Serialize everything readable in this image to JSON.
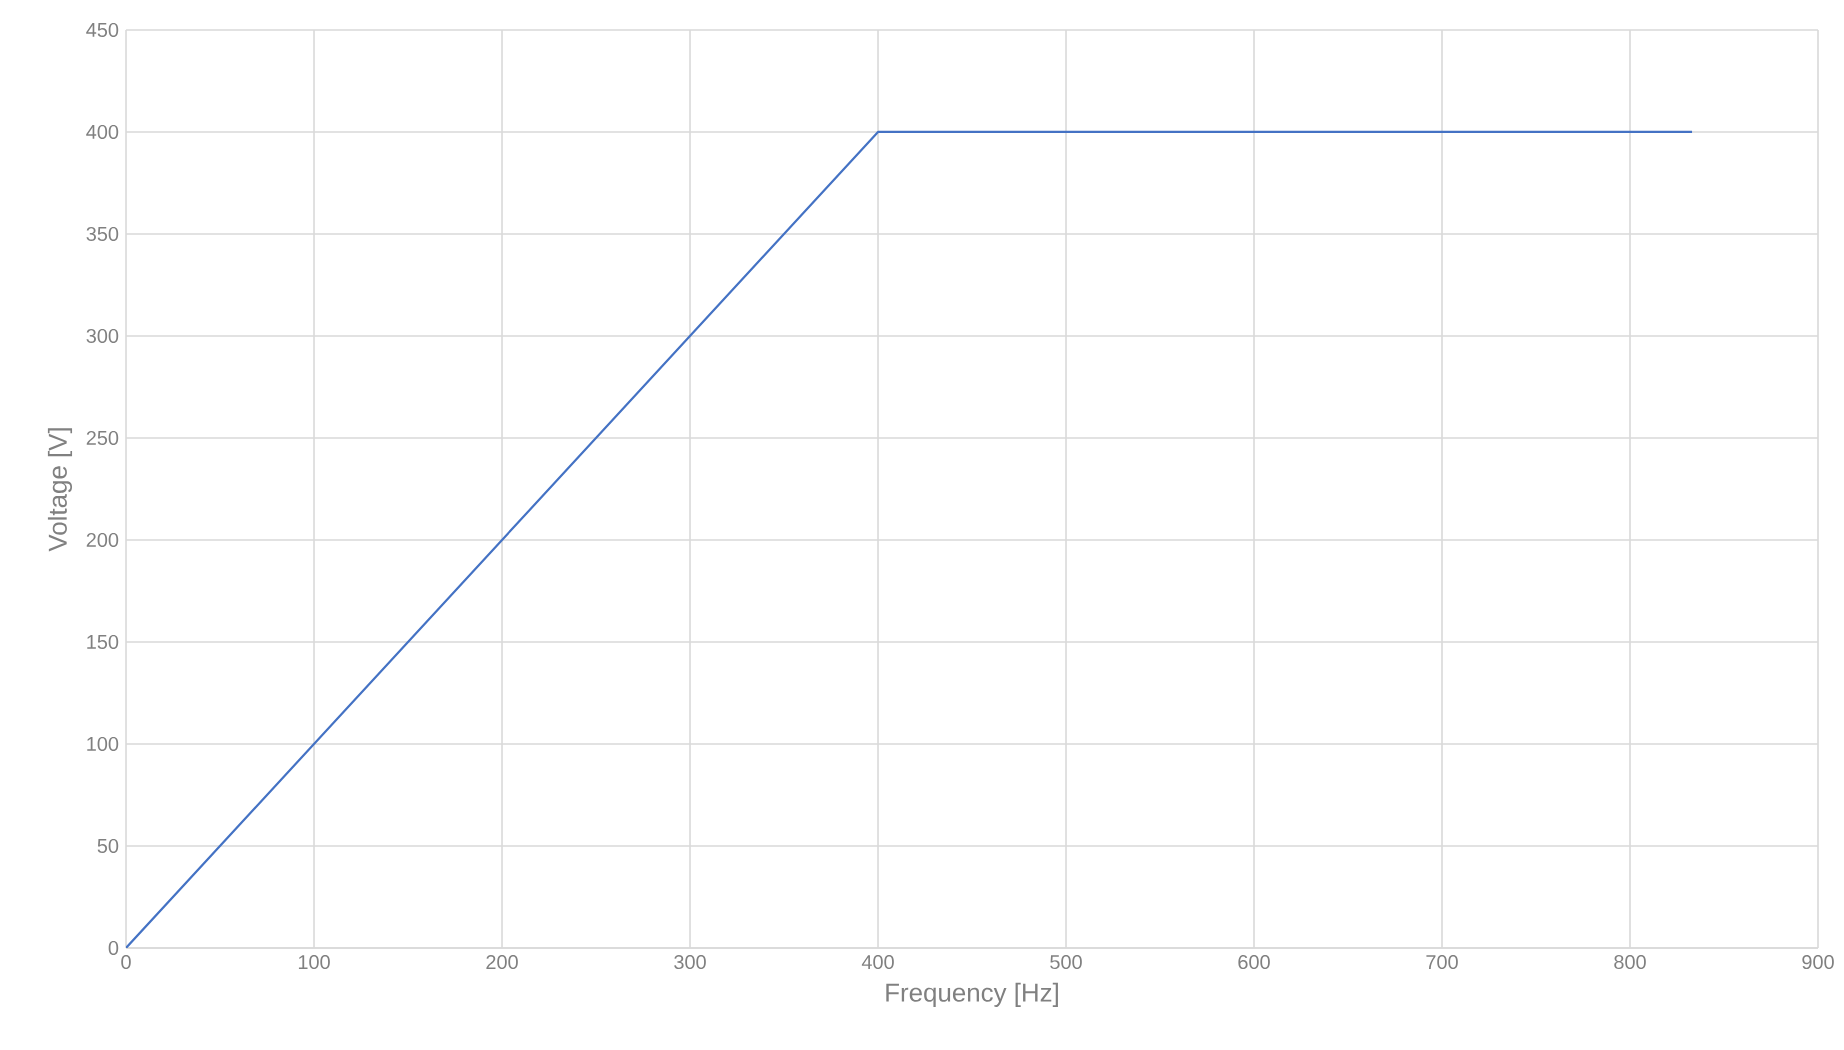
{
  "chart_data": {
    "type": "line",
    "xlabel": "Frequency [Hz]",
    "ylabel": "Voltage [V]",
    "x": [
      0,
      400,
      833
    ],
    "series": [
      {
        "color": "#4472c4",
        "values": [
          0,
          400,
          400
        ]
      }
    ],
    "xlim": [
      0,
      900
    ],
    "xticks": [
      0,
      100,
      200,
      300,
      400,
      500,
      600,
      700,
      800,
      900
    ],
    "ylim": [
      0,
      450
    ],
    "yticks": [
      0,
      50,
      100,
      150,
      200,
      250,
      300,
      350,
      400,
      450
    ],
    "grid": true,
    "marker": "none",
    "line_style": "solid"
  }
}
